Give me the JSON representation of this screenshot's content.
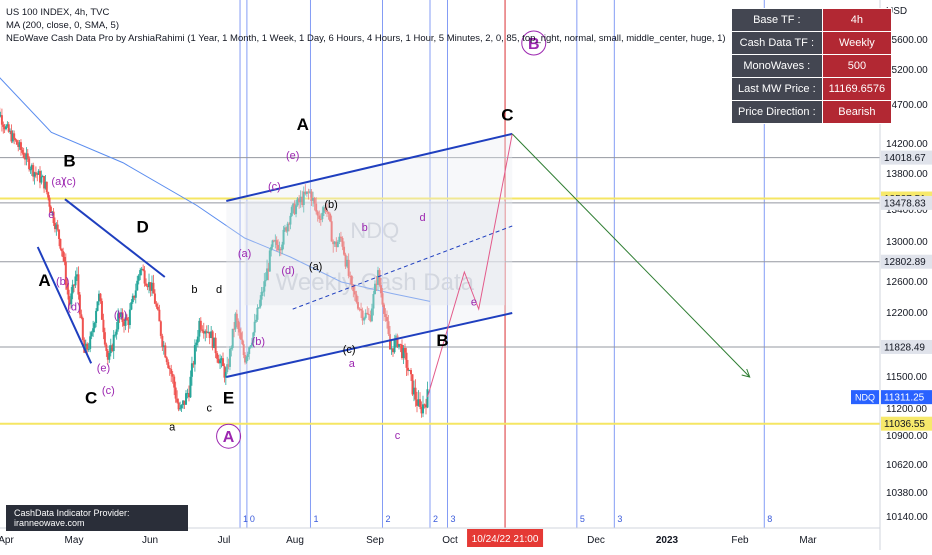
{
  "legend": {
    "line1": "US 100 INDEX, 4h, TVC",
    "line2": "MA (200, close, 0, SMA, 5)",
    "line3": "NEoWave Cash Data Pro by ArshiaRahimi (1 Year, 1 Month, 1 Week, 1 Day, 6 Hours, 4 Hours, 1 Hour, 5 Minutes, 2, 0, 85, top_right, normal, small, middle_center, huge, 1)"
  },
  "info_table": [
    {
      "key": "Base TF :",
      "value": "4h"
    },
    {
      "key": "Cash Data TF :",
      "value": "Weekly"
    },
    {
      "key": "MonoWaves :",
      "value": "500"
    },
    {
      "key": "Last MW Price :",
      "value": "11169.6576"
    },
    {
      "key": "Price Direction :",
      "value": "Bearish"
    }
  ],
  "provider_label": "CashData Indicator Provider: iranneowave.com",
  "watermark": {
    "symbol": "NDQ",
    "text": "Weekly Cash Data"
  },
  "colors": {
    "up": "#26a69a",
    "down": "#ef5350",
    "ma": "#5b8def",
    "channel": "#1f3fbf",
    "wave_label": "#9c27b0",
    "support": "#f5e663",
    "red_line": "#e53935",
    "price_badge": "#2962ff"
  },
  "chart_data": {
    "type": "candlestick",
    "title": "US 100 INDEX, 4h, TVC",
    "ylabel": "USD",
    "ylim": [
      10050,
      16050
    ],
    "y_ticks": [
      10140.0,
      10380.0,
      10620.0,
      10900.0,
      11200.0,
      11500.0,
      12200.0,
      12600.0,
      13000.0,
      13400.0,
      13800.0,
      14200.0,
      14700.0,
      15200.0,
      15600.0
    ],
    "y_tick_labels": [
      "10140.00",
      "10380.00",
      "10620.00",
      "10900.00",
      "11200.00",
      "11500.00",
      "12200.00",
      "12600.00",
      "13000.00",
      "13400.00",
      "13800.00",
      "14200.00",
      "14700.00",
      "15200.00",
      "15600.00"
    ],
    "x_ticks": [
      {
        "label": "Apr",
        "x": 0
      },
      {
        "label": "May",
        "x": 30
      },
      {
        "label": "Jun",
        "x": 61
      },
      {
        "label": "Jul",
        "x": 91
      },
      {
        "label": "Aug",
        "x": 122
      },
      {
        "label": "Sep",
        "x": 153
      },
      {
        "label": "Oct",
        "x": 183
      },
      {
        "label": "Dec",
        "x": 244
      },
      {
        "label": "2023",
        "x": 275
      },
      {
        "label": "Feb",
        "x": 306
      },
      {
        "label": "Mar",
        "x": 334
      }
    ],
    "xlim": [
      -6,
      344
    ],
    "price_levels": [
      {
        "value": 14018.67,
        "label": "14018.67",
        "style": "gray"
      },
      {
        "value": 13527.51,
        "label": "13527.51",
        "style": "yellow"
      },
      {
        "value": 13478.83,
        "label": "13478.83",
        "style": "gray"
      },
      {
        "value": 12802.89,
        "label": "12802.89",
        "style": "gray"
      },
      {
        "value": 11828.49,
        "label": "11828.49",
        "style": "gray"
      },
      {
        "value": 11036.55,
        "label": "11036.55",
        "style": "yellow"
      }
    ],
    "last_price": {
      "symbol": "NDQ",
      "value": 11311.25,
      "label": "11311.25"
    },
    "crosshair_time_label": "10/24/22  21:00",
    "crosshair_x": 206,
    "close_path": [
      {
        "x": -6,
        "y": 14800
      },
      {
        "x": 0,
        "y": 14400
      },
      {
        "x": 6,
        "y": 14150
      },
      {
        "x": 12,
        "y": 13850
      },
      {
        "x": 17,
        "y": 13700
      },
      {
        "x": 21,
        "y": 13300
      },
      {
        "x": 25,
        "y": 12900
      },
      {
        "x": 28,
        "y": 12300
      },
      {
        "x": 31,
        "y": 12700
      },
      {
        "x": 34,
        "y": 11750
      },
      {
        "x": 37,
        "y": 11900
      },
      {
        "x": 40,
        "y": 12450
      },
      {
        "x": 44,
        "y": 11650
      },
      {
        "x": 48,
        "y": 12150
      },
      {
        "x": 52,
        "y": 12100
      },
      {
        "x": 57,
        "y": 12750
      },
      {
        "x": 62,
        "y": 12500
      },
      {
        "x": 66,
        "y": 11900
      },
      {
        "x": 70,
        "y": 11500
      },
      {
        "x": 73,
        "y": 11150
      },
      {
        "x": 77,
        "y": 11400
      },
      {
        "x": 81,
        "y": 12100
      },
      {
        "x": 85,
        "y": 12000
      },
      {
        "x": 89,
        "y": 11700
      },
      {
        "x": 92,
        "y": 11500
      },
      {
        "x": 96,
        "y": 12150
      },
      {
        "x": 100,
        "y": 11700
      },
      {
        "x": 104,
        "y": 12000
      },
      {
        "x": 108,
        "y": 12500
      },
      {
        "x": 112,
        "y": 12950
      },
      {
        "x": 116,
        "y": 13000
      },
      {
        "x": 120,
        "y": 13350
      },
      {
        "x": 124,
        "y": 13500
      },
      {
        "x": 128,
        "y": 13600
      },
      {
        "x": 131,
        "y": 13300
      },
      {
        "x": 134,
        "y": 13450
      },
      {
        "x": 137,
        "y": 12950
      },
      {
        "x": 140,
        "y": 13050
      },
      {
        "x": 144,
        "y": 12500
      },
      {
        "x": 148,
        "y": 12200
      },
      {
        "x": 151,
        "y": 12150
      },
      {
        "x": 154,
        "y": 12700
      },
      {
        "x": 157,
        "y": 12200
      },
      {
        "x": 159,
        "y": 11800
      },
      {
        "x": 162,
        "y": 11900
      },
      {
        "x": 165,
        "y": 11700
      },
      {
        "x": 168,
        "y": 11400
      },
      {
        "x": 171,
        "y": 11180
      },
      {
        "x": 174,
        "y": 11320
      }
    ],
    "ma200_path": [
      {
        "x": -6,
        "y": 15200
      },
      {
        "x": 20,
        "y": 14350
      },
      {
        "x": 50,
        "y": 13950
      },
      {
        "x": 80,
        "y": 13450
      },
      {
        "x": 100,
        "y": 13050
      },
      {
        "x": 120,
        "y": 12850
      },
      {
        "x": 140,
        "y": 12600
      },
      {
        "x": 160,
        "y": 12450
      },
      {
        "x": 175,
        "y": 12350
      }
    ],
    "channel": {
      "upper": [
        {
          "x": 92,
          "y": 13500
        },
        {
          "x": 209,
          "y": 14330
        }
      ],
      "lower": [
        {
          "x": 92,
          "y": 11500
        },
        {
          "x": 209,
          "y": 12200
        }
      ]
    },
    "forecast_path": [
      {
        "x": 174,
        "y": 11311
      },
      {
        "x": 189,
        "y": 12700
      },
      {
        "x": 195,
        "y": 12250
      },
      {
        "x": 209,
        "y": 14330
      },
      {
        "x": 310,
        "y": 11500
      }
    ],
    "vertical_lines_x": [
      98,
      101,
      128,
      156,
      175,
      182,
      206,
      236,
      252,
      316
    ],
    "vertical_line_labels": [
      {
        "x": 98,
        "label": "1"
      },
      {
        "x": 101,
        "label": "0"
      },
      {
        "x": 128,
        "label": "1"
      },
      {
        "x": 156,
        "label": "2"
      },
      {
        "x": 175,
        "label": "2"
      },
      {
        "x": 182,
        "label": "3"
      },
      {
        "x": 236,
        "label": "5"
      },
      {
        "x": 252,
        "label": "3"
      },
      {
        "x": 316,
        "label": "8"
      },
      {
        "x": 14,
        "label": "0"
      }
    ],
    "wave_labels": [
      {
        "text": "A",
        "x": 17,
        "y": 12550,
        "color": "black",
        "size": "big"
      },
      {
        "text": "B",
        "x": 28,
        "y": 13900,
        "color": "black",
        "size": "big"
      },
      {
        "text": "C",
        "x": 37,
        "y": 11250,
        "color": "black",
        "size": "big"
      },
      {
        "text": "D",
        "x": 58,
        "y": 13120,
        "color": "black",
        "size": "big"
      },
      {
        "text": "E",
        "x": 93,
        "y": 11250,
        "color": "black",
        "size": "big"
      },
      {
        "text": "A",
        "x": 125,
        "y": 14380,
        "color": "black",
        "size": "big"
      },
      {
        "text": "B",
        "x": 180,
        "y": 11840,
        "color": "black",
        "size": "big"
      },
      {
        "text": "C",
        "x": 207,
        "y": 14500,
        "color": "black",
        "size": "big"
      },
      {
        "text": "a",
        "x": 70,
        "y": 10960,
        "color": "black",
        "size": "small"
      },
      {
        "text": "b",
        "x": 79,
        "y": 12460,
        "color": "black",
        "size": "small"
      },
      {
        "text": "c",
        "x": 85,
        "y": 11170,
        "color": "black",
        "size": "small"
      },
      {
        "text": "d",
        "x": 89,
        "y": 12460,
        "color": "black",
        "size": "small"
      },
      {
        "text": "(a)",
        "x": 23,
        "y": 13680,
        "color": "purple",
        "size": "small"
      },
      {
        "text": "(c)",
        "x": 28,
        "y": 13680,
        "color": "purple",
        "size": "small"
      },
      {
        "text": "e",
        "x": 20,
        "y": 13300,
        "color": "purple",
        "size": "small"
      },
      {
        "text": "(b)",
        "x": 25,
        "y": 12560,
        "color": "purple",
        "size": "small"
      },
      {
        "text": "(d)",
        "x": 30,
        "y": 12230,
        "color": "purple",
        "size": "small"
      },
      {
        "text": "(b)",
        "x": 49,
        "y": 12140,
        "color": "purple",
        "size": "small"
      },
      {
        "text": "(e)",
        "x": 42,
        "y": 11560,
        "color": "purple",
        "size": "small"
      },
      {
        "text": "(c)",
        "x": 44,
        "y": 11340,
        "color": "purple",
        "size": "small"
      },
      {
        "text": "(a)",
        "x": 100,
        "y": 12850,
        "color": "purple",
        "size": "small"
      },
      {
        "text": "(b)",
        "x": 106,
        "y": 11850,
        "color": "purple",
        "size": "small"
      },
      {
        "text": "(c)",
        "x": 113,
        "y": 13620,
        "color": "purple",
        "size": "small"
      },
      {
        "text": "(d)",
        "x": 119,
        "y": 12680,
        "color": "purple",
        "size": "small"
      },
      {
        "text": "(e)",
        "x": 121,
        "y": 14000,
        "color": "purple",
        "size": "small"
      },
      {
        "text": "(a)",
        "x": 130,
        "y": 12720,
        "color": "black",
        "size": "small"
      },
      {
        "text": "(b)",
        "x": 136,
        "y": 13420,
        "color": "black",
        "size": "small"
      },
      {
        "text": "(c)",
        "x": 143,
        "y": 11760,
        "color": "black",
        "size": "small"
      },
      {
        "text": "b",
        "x": 149,
        "y": 13140,
        "color": "purple",
        "size": "small"
      },
      {
        "text": "a",
        "x": 144,
        "y": 11610,
        "color": "purple",
        "size": "small"
      },
      {
        "text": "d",
        "x": 172,
        "y": 13260,
        "color": "purple",
        "size": "small"
      },
      {
        "text": "e",
        "x": 193,
        "y": 12300,
        "color": "purple",
        "size": "small"
      },
      {
        "text": "c",
        "x": 162,
        "y": 10870,
        "color": "purple",
        "size": "small"
      },
      {
        "text": "A",
        "x": 93,
        "y": 10840,
        "color": "purple",
        "size": "circled"
      },
      {
        "text": "B",
        "x": 218,
        "y": 15480,
        "color": "purple",
        "size": "circled"
      }
    ]
  }
}
